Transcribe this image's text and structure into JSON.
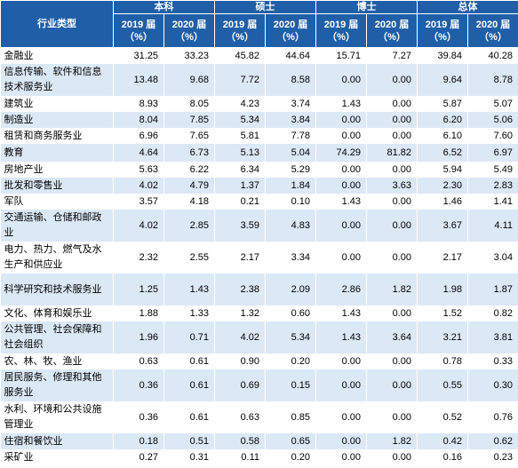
{
  "header": {
    "category_label": "行业类型",
    "groups": [
      "本科",
      "硕士",
      "博士",
      "总体"
    ],
    "subheaders": [
      "2019 届\n（%）",
      "2020 届\n（%）",
      "2019 届\n（%）",
      "2020 届\n（%）",
      "2019 届\n（%）",
      "2020 届\n（%）",
      "2019 届\n（%）",
      "2020 届\n（%）"
    ]
  },
  "rows": [
    {
      "name": "金融业",
      "values": [
        "31.25",
        "33.23",
        "45.82",
        "44.64",
        "15.71",
        "7.27",
        "39.84",
        "40.28"
      ]
    },
    {
      "name": "信息传输、软件和信息技术服务业",
      "values": [
        "13.48",
        "9.68",
        "7.72",
        "8.58",
        "0.00",
        "0.00",
        "9.64",
        "8.78"
      ]
    },
    {
      "name": "建筑业",
      "values": [
        "8.93",
        "8.05",
        "4.23",
        "3.74",
        "1.43",
        "0.00",
        "5.87",
        "5.07"
      ]
    },
    {
      "name": "制造业",
      "values": [
        "8.04",
        "7.85",
        "5.34",
        "3.84",
        "0.00",
        "0.00",
        "6.20",
        "5.06"
      ]
    },
    {
      "name": "租赁和商务服务业",
      "values": [
        "6.96",
        "7.65",
        "5.81",
        "7.78",
        "0.00",
        "0.00",
        "6.10",
        "7.60"
      ]
    },
    {
      "name": "教育",
      "values": [
        "4.64",
        "6.73",
        "5.13",
        "5.04",
        "74.29",
        "81.82",
        "6.52",
        "6.97"
      ]
    },
    {
      "name": "房地产业",
      "values": [
        "5.63",
        "6.22",
        "6.34",
        "5.29",
        "0.00",
        "0.00",
        "5.94",
        "5.49"
      ]
    },
    {
      "name": "批发和零售业",
      "values": [
        "4.02",
        "4.79",
        "1.37",
        "1.84",
        "0.00",
        "3.63",
        "2.30",
        "2.83"
      ]
    },
    {
      "name": "军队",
      "values": [
        "3.57",
        "4.18",
        "0.21",
        "0.10",
        "1.43",
        "0.00",
        "1.46",
        "1.41"
      ]
    },
    {
      "name": "交通运输、仓储和邮政业",
      "values": [
        "4.02",
        "2.85",
        "3.59",
        "4.83",
        "0.00",
        "0.00",
        "3.67",
        "4.11"
      ]
    },
    {
      "name": "电力、热力、燃气及水生产和供应业",
      "values": [
        "2.32",
        "2.55",
        "2.17",
        "3.34",
        "0.00",
        "0.00",
        "2.17",
        "3.04"
      ]
    },
    {
      "name": "科学研究和技术服务业",
      "values": [
        "1.25",
        "1.43",
        "2.38",
        "2.09",
        "2.86",
        "1.82",
        "1.98",
        "1.87"
      ]
    },
    {
      "name": "文化、体育和娱乐业",
      "values": [
        "1.88",
        "1.33",
        "1.32",
        "0.60",
        "1.43",
        "0.00",
        "1.52",
        "0.82"
      ]
    },
    {
      "name": "公共管理、社会保障和社会组织",
      "values": [
        "1.96",
        "0.71",
        "4.02",
        "5.34",
        "1.43",
        "3.64",
        "3.21",
        "3.81"
      ]
    },
    {
      "name": "农、林、牧、渔业",
      "values": [
        "0.63",
        "0.61",
        "0.90",
        "0.20",
        "0.00",
        "0.00",
        "0.78",
        "0.33"
      ]
    },
    {
      "name": "居民服务、修理和其他服务业",
      "values": [
        "0.36",
        "0.61",
        "0.69",
        "0.15",
        "0.00",
        "0.00",
        "0.55",
        "0.30"
      ]
    },
    {
      "name": "水利、环境和公共设施管理业",
      "values": [
        "0.36",
        "0.61",
        "0.63",
        "0.85",
        "0.00",
        "0.00",
        "0.52",
        "0.76"
      ]
    },
    {
      "name": "住宿和餐饮业",
      "values": [
        "0.18",
        "0.51",
        "0.58",
        "0.65",
        "0.00",
        "1.82",
        "0.42",
        "0.62"
      ]
    },
    {
      "name": "采矿业",
      "values": [
        "0.27",
        "0.31",
        "0.11",
        "0.20",
        "0.00",
        "0.00",
        "0.16",
        "0.23"
      ]
    }
  ],
  "colors": {
    "header_bg": "#1f5fa8",
    "header_text": "#ffffff",
    "stripe": "#dbe8f6"
  }
}
